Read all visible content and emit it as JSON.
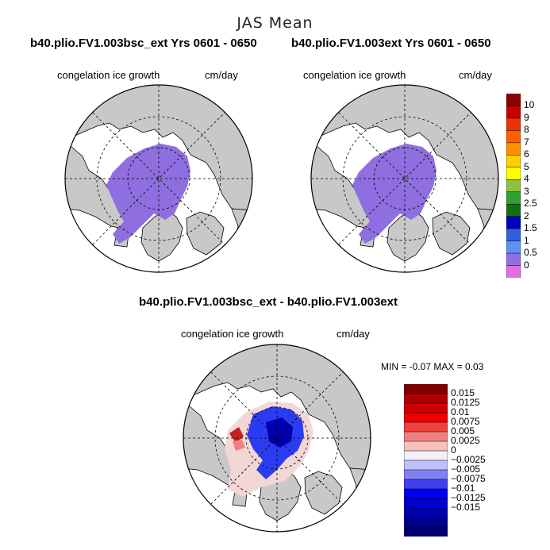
{
  "main_title": "JAS Mean",
  "panels": [
    {
      "title": "b40.plio.FV1.003bsc_ext  Yrs 0601 - 0650",
      "variable": "congelation ice growth",
      "units": "cm/day"
    },
    {
      "title": "b40.plio.FV1.003ext  Yrs 0601 - 0650",
      "variable": "congelation ice growth",
      "units": "cm/day"
    },
    {
      "title": "b40.plio.FV1.003bsc_ext - b40.plio.FV1.003ext",
      "variable": "congelation ice growth",
      "units": "cm/day"
    }
  ],
  "diff_stats": {
    "text": "MIN =    -0.07 MAX =     0.03"
  },
  "colorbar_main": {
    "labels": [
      "10",
      "9",
      "8",
      "7",
      "6",
      "5",
      "4",
      "3",
      "2.5",
      "2",
      "1.5",
      "1",
      "0.5",
      "0"
    ],
    "colors": [
      "#8b0000",
      "#c80000",
      "#f03000",
      "#ff6000",
      "#ff9000",
      "#ffd000",
      "#ffff00",
      "#90c040",
      "#30a030",
      "#107010",
      "#0000c0",
      "#3060e0",
      "#6090f0",
      "#9070e0",
      "#e070e0"
    ]
  },
  "colorbar_diff": {
    "labels": [
      "0.015",
      "0.0125",
      "0.01",
      "0.0075",
      "0.005",
      "0.0025",
      "0",
      "−0.0025",
      "−0.005",
      "−0.0075",
      "−0.01",
      "−0.0125",
      "−0.015"
    ],
    "colors": [
      "#800000",
      "#b00000",
      "#d00000",
      "#f00000",
      "#f04040",
      "#f08080",
      "#f8c0c0",
      "#f0f0f8",
      "#c0c0f8",
      "#8080f0",
      "#4040f0",
      "#0000f0",
      "#0000d0",
      "#0000b0",
      "#000090",
      "#000070"
    ]
  },
  "colors": {
    "land": "#c8c8c8",
    "ice": "#8f6fe0",
    "grid": "#000000"
  }
}
